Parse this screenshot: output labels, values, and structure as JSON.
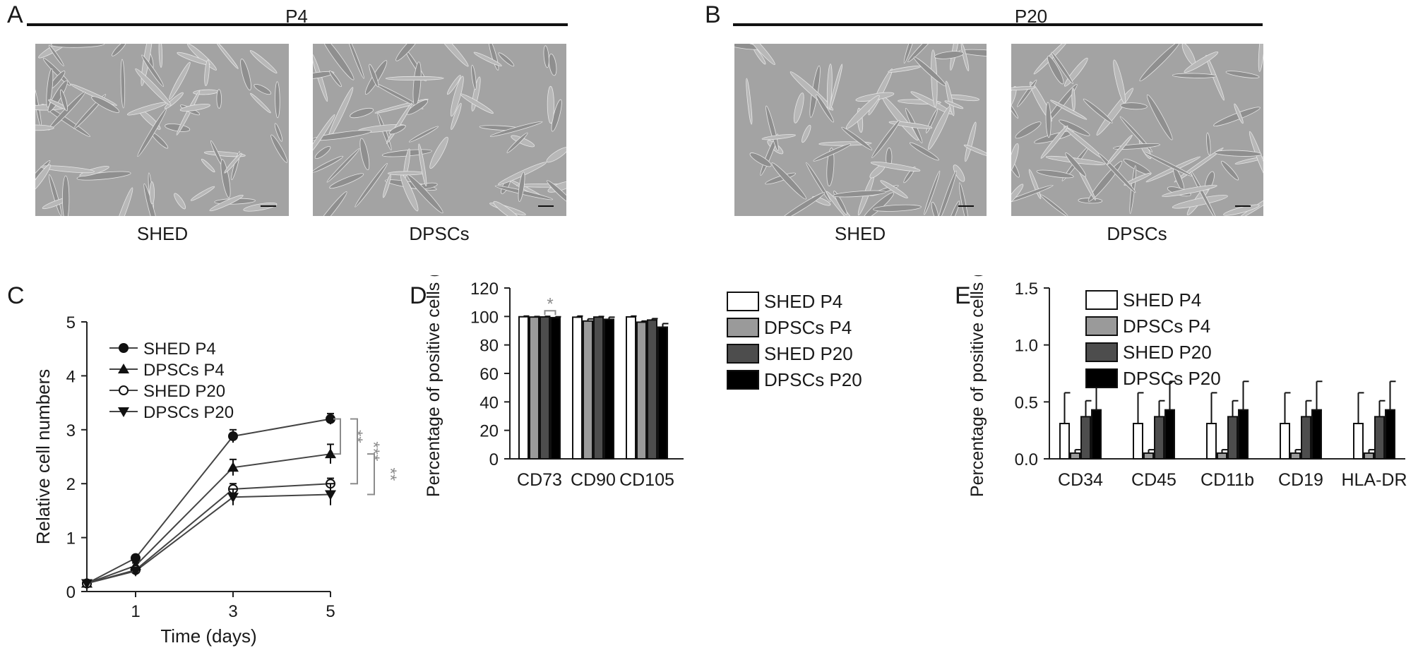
{
  "panels": {
    "A": {
      "letter": "A",
      "passage": "P4",
      "left_caption": "SHED",
      "right_caption": "DPSCs"
    },
    "B": {
      "letter": "B",
      "passage": "P20",
      "left_caption": "SHED",
      "right_caption": "DPSCs"
    },
    "C": {
      "letter": "C"
    },
    "D": {
      "letter": "D"
    },
    "E": {
      "letter": "E"
    }
  },
  "colors": {
    "shed_p4": "#ffffff",
    "dpscs_p4": "#9a9a9a",
    "shed_p20": "#4d4d4d",
    "dpscs_p20": "#000000",
    "sig": "#8c8c8c"
  },
  "chart_data": [
    {
      "id": "C",
      "type": "line",
      "xlabel": "Time (days)",
      "ylabel": "Relative cell numbers",
      "x": [
        0,
        1,
        3,
        5
      ],
      "x_ticks": [
        "1",
        "3",
        "5"
      ],
      "y_ticks": [
        "0",
        "1",
        "2",
        "3",
        "4",
        "5"
      ],
      "ylim": [
        0,
        5
      ],
      "legend_position": "top-left",
      "series": [
        {
          "name": "SHED P4",
          "marker": "filled-circle",
          "values": [
            0.15,
            0.62,
            2.88,
            3.2
          ],
          "errors": [
            0.05,
            0.05,
            0.12,
            0.1
          ]
        },
        {
          "name": "DPSCs P4",
          "marker": "filled-triangle-up",
          "values": [
            0.15,
            0.48,
            2.3,
            2.55
          ],
          "errors": [
            0.05,
            0.05,
            0.15,
            0.18
          ]
        },
        {
          "name": "SHED P20",
          "marker": "open-circle",
          "values": [
            0.15,
            0.4,
            1.9,
            2.0
          ],
          "errors": [
            0.05,
            0.04,
            0.1,
            0.1
          ]
        },
        {
          "name": "DPSCs P20",
          "marker": "filled-triangle-down",
          "values": [
            0.15,
            0.38,
            1.75,
            1.8
          ],
          "errors": [
            0.05,
            0.04,
            0.15,
            0.2
          ]
        }
      ],
      "significance": [
        "**",
        "***",
        "**"
      ]
    },
    {
      "id": "D",
      "type": "bar",
      "ylabel": "Percentage of positive cells (%)",
      "categories": [
        "CD73",
        "CD90",
        "CD105"
      ],
      "y_ticks": [
        "0",
        "20",
        "40",
        "60",
        "80",
        "100",
        "120"
      ],
      "ylim": [
        0,
        120
      ],
      "legend_position": "right",
      "series": [
        {
          "name": "SHED P4",
          "values": [
            99.8,
            99.5,
            99.7
          ],
          "errors": [
            0.5,
            0.8,
            0.6
          ]
        },
        {
          "name": "DPSCs P4",
          "values": [
            99.6,
            96.8,
            96.0
          ],
          "errors": [
            0.4,
            1.5,
            0.8
          ]
        },
        {
          "name": "SHED P20",
          "values": [
            99.7,
            99.6,
            97.5
          ],
          "errors": [
            0.4,
            0.4,
            1.0
          ]
        },
        {
          "name": "DPSCs P20",
          "values": [
            99.2,
            98.0,
            92.5
          ],
          "errors": [
            0.6,
            1.5,
            2.5
          ]
        }
      ],
      "significance": "*"
    },
    {
      "id": "E",
      "type": "bar",
      "ylabel": "Percentage of positive cells (%)",
      "categories": [
        "CD34",
        "CD45",
        "CD11b",
        "CD19",
        "HLA-DR"
      ],
      "y_ticks": [
        "0.0",
        "0.5",
        "1.0",
        "1.5"
      ],
      "ylim": [
        0,
        1.5
      ],
      "legend_position": "top",
      "series": [
        {
          "name": "SHED P4",
          "values": [
            0.31,
            0.31,
            0.31,
            0.31,
            0.31
          ],
          "errors": [
            0.27,
            0.27,
            0.27,
            0.27,
            0.27
          ]
        },
        {
          "name": "DPSCs P4",
          "values": [
            0.05,
            0.05,
            0.05,
            0.05,
            0.05
          ],
          "errors": [
            0.03,
            0.03,
            0.03,
            0.03,
            0.03
          ]
        },
        {
          "name": "SHED P20",
          "values": [
            0.37,
            0.37,
            0.37,
            0.37,
            0.37
          ],
          "errors": [
            0.14,
            0.14,
            0.14,
            0.14,
            0.14
          ]
        },
        {
          "name": "DPSCs P20",
          "values": [
            0.43,
            0.43,
            0.43,
            0.43,
            0.43
          ],
          "errors": [
            0.25,
            0.25,
            0.25,
            0.25,
            0.25
          ]
        }
      ]
    }
  ]
}
